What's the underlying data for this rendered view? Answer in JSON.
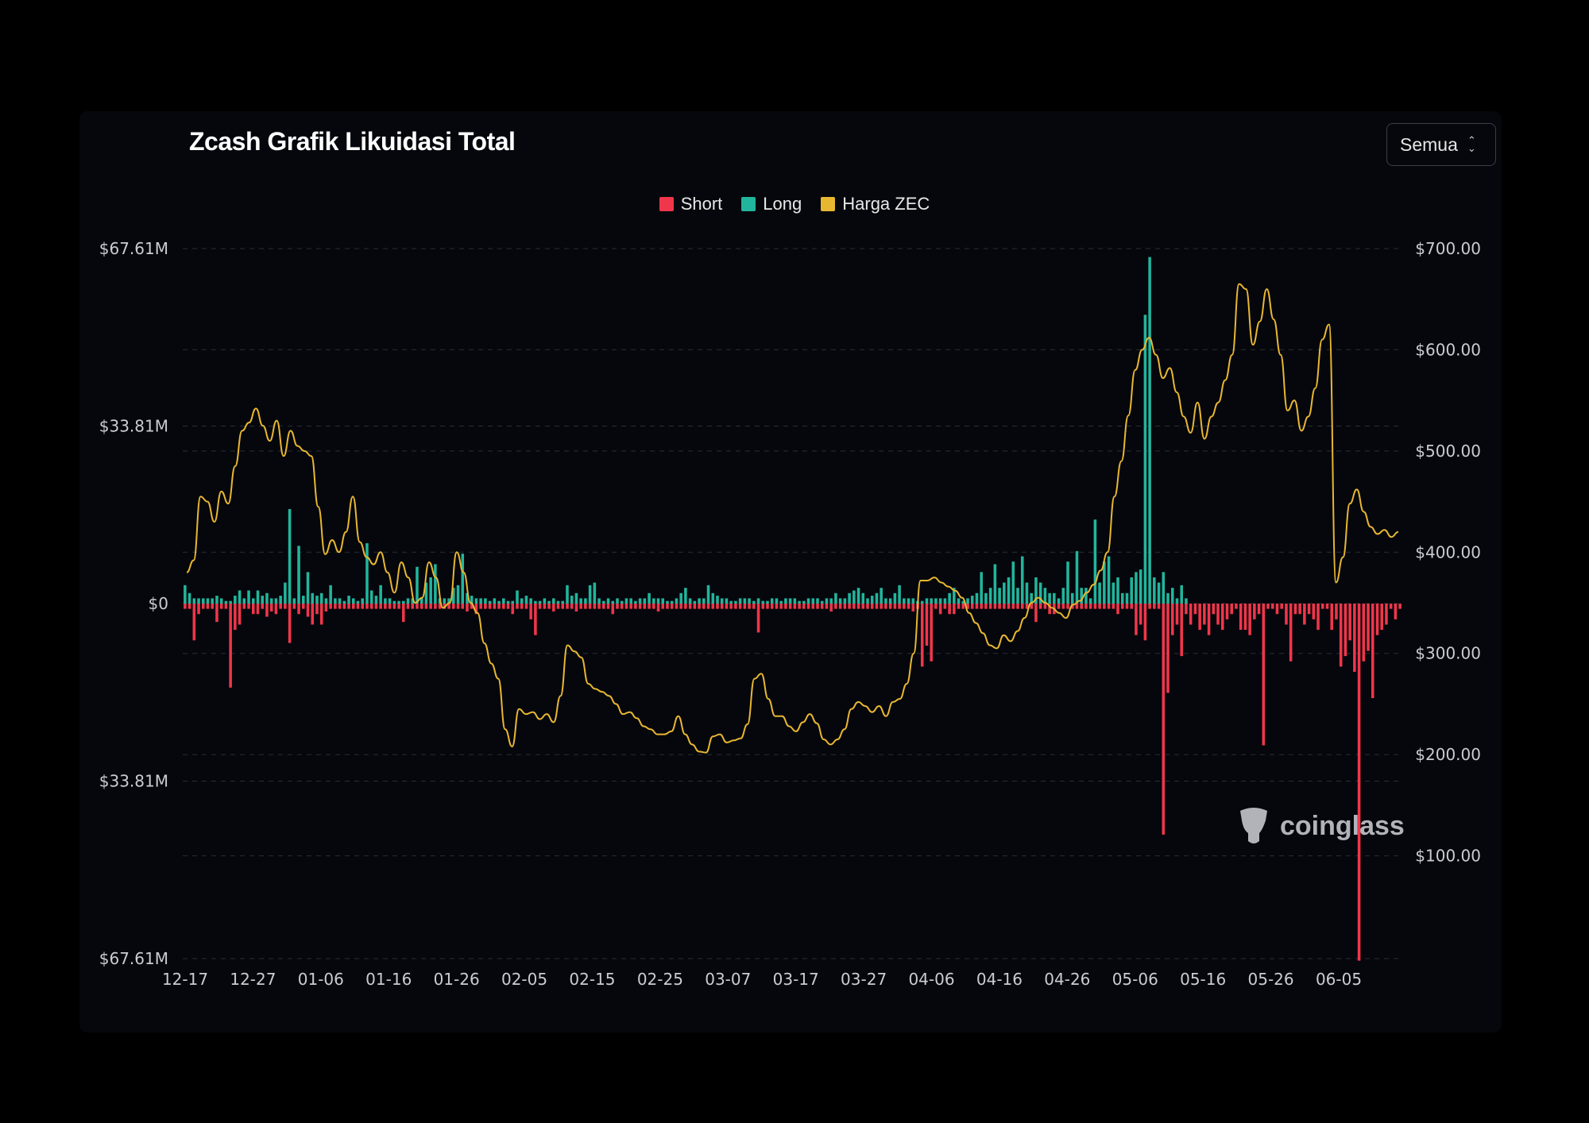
{
  "header": {
    "title": "Zcash Grafik Likuidasi Total",
    "range_select": "Semua"
  },
  "watermark": {
    "text": "coinglass",
    "icon": "coinglass-logo-icon"
  },
  "colors": {
    "short": "#f0364b",
    "long": "#22b59d",
    "price": "#e8b731",
    "background": "#05070c"
  },
  "chart_data": {
    "type": "bar",
    "title": "Zcash Grafik Likuidasi Total",
    "legend": {
      "position": "top-center",
      "entries": [
        "Short",
        "Long",
        "Harga ZEC"
      ]
    },
    "grid": true,
    "x_ticks": [
      "12-17",
      "12-27",
      "01-06",
      "01-16",
      "01-26",
      "02-05",
      "02-15",
      "02-25",
      "03-07",
      "03-17",
      "03-27",
      "04-06",
      "04-16",
      "04-26",
      "05-06",
      "05-16",
      "05-26",
      "06-05"
    ],
    "y_left": {
      "ticks": [
        "$67.61M",
        "$33.81M",
        "$0",
        "$33.81M",
        "$67.61M"
      ],
      "range": [
        -67.61,
        67.61
      ],
      "unit": "USD M"
    },
    "y_right": {
      "ticks": [
        "$700.00",
        "$600.00",
        "$500.00",
        "$400.00",
        "$300.00",
        "$200.00",
        "$100.00"
      ],
      "range": [
        0,
        700
      ],
      "unit": "USD"
    },
    "series": [
      {
        "name": "Long",
        "type": "bar",
        "values": [
          3.5,
          2,
          1,
          1,
          1,
          1,
          1,
          1.5,
          1,
          0.5,
          0.5,
          1.5,
          2.5,
          1,
          2.5,
          1,
          2.5,
          1.5,
          2,
          1,
          1,
          1.5,
          4,
          18,
          1,
          11,
          1.5,
          6,
          2,
          1.5,
          2,
          1,
          3.5,
          1,
          1,
          0.5,
          1.5,
          1,
          0.5,
          1,
          11.5,
          2.5,
          1.5,
          3.5,
          1,
          1,
          0.5,
          0.5,
          0.5,
          1,
          1,
          7,
          1,
          4,
          5,
          7.5,
          1,
          1,
          1,
          3,
          3.5,
          9.5,
          2,
          1.5,
          1,
          1,
          1,
          0.5,
          1,
          0.5,
          1,
          0.5,
          0.5,
          2.5,
          1,
          1.5,
          1,
          0.5,
          0.5,
          1,
          0.5,
          1,
          0.5,
          0.5,
          3.5,
          1.5,
          2,
          1,
          1,
          3.5,
          4,
          1,
          0.5,
          1,
          0.5,
          1,
          0.5,
          1,
          1,
          0.5,
          1,
          1,
          2,
          1,
          1,
          1,
          0.5,
          0.5,
          1,
          2,
          3,
          1,
          0.5,
          1,
          1,
          3.5,
          2,
          1.5,
          1,
          1,
          0.5,
          0.5,
          1,
          1,
          1,
          0.5,
          1,
          0.5,
          0.5,
          1,
          1,
          0.5,
          1,
          1,
          1,
          0.5,
          0.5,
          1,
          1,
          1,
          0.5,
          1,
          1,
          2,
          1,
          1,
          2,
          2.5,
          3,
          2,
          1,
          1.5,
          2,
          3,
          1,
          1,
          2,
          3.5,
          1,
          1,
          1,
          0.5,
          0.5,
          1,
          1,
          1,
          1,
          1,
          2,
          3,
          1,
          0.5,
          1,
          1.5,
          2,
          6,
          2,
          3,
          7.5,
          3,
          4,
          5,
          8,
          3,
          9,
          4,
          2,
          5,
          4,
          3,
          2,
          2,
          1,
          3,
          8,
          2,
          10,
          3,
          3,
          1,
          16,
          4,
          8,
          9,
          4,
          5,
          2,
          2,
          5,
          6,
          6.5,
          55,
          66,
          5,
          4,
          6,
          2,
          3,
          1,
          3.5,
          1
        ],
        "unit": "USD M"
      },
      {
        "name": "Short",
        "type": "bar",
        "values": [
          -1,
          -1,
          -7,
          -2,
          -1,
          -1,
          -1,
          -3.5,
          -1,
          -1,
          -16,
          -5,
          -4,
          -1,
          -1,
          -2,
          -2,
          -1,
          -2.5,
          -1.5,
          -2,
          -1,
          -1,
          -7.5,
          -1,
          -2,
          -1,
          -2.5,
          -4,
          -2,
          -4,
          -1.5,
          -1,
          -1,
          -1,
          -1,
          -1,
          -1,
          -1,
          -1,
          -1,
          -1,
          -1,
          -1,
          -1,
          -1,
          -1,
          -1,
          -3.5,
          -1,
          -1,
          -1,
          -1,
          -1,
          -1,
          -1,
          -1,
          -1,
          -1,
          -1,
          -1,
          -1,
          -1.5,
          -1,
          -2,
          -1,
          -1,
          -1,
          -1,
          -1,
          -1,
          -1,
          -2,
          -1,
          -1,
          -1,
          -3,
          -6,
          -1,
          -1,
          -1,
          -1.5,
          -1,
          -1,
          -1,
          -1,
          -1.5,
          -1,
          -1,
          -1,
          -1,
          -1,
          -1,
          -1,
          -2,
          -1,
          -1,
          -1,
          -1,
          -1,
          -1,
          -1,
          -1,
          -1,
          -1.5,
          -1,
          -1,
          -1,
          -1,
          -1,
          -1,
          -1,
          -1,
          -1,
          -1,
          -1,
          -1,
          -1,
          -1,
          -1,
          -1,
          -1,
          -1,
          -1,
          -1,
          -1,
          -5.5,
          -1,
          -1,
          -1,
          -1,
          -1,
          -1,
          -1,
          -1,
          -1,
          -1,
          -1,
          -1,
          -1,
          -1,
          -1,
          -1.5,
          -1,
          -1,
          -1,
          -1,
          -1,
          -1,
          -1,
          -1,
          -1,
          -1,
          -1,
          -1,
          -1,
          -1,
          -1,
          -1,
          -1,
          -1.5,
          -1,
          -12,
          -8,
          -11,
          -1,
          -2,
          -1,
          -2,
          -2,
          -1,
          -1,
          -1,
          -1,
          -1,
          -1,
          -1,
          -1,
          -1,
          -1,
          -1,
          -1,
          -1,
          -1,
          -1,
          -1,
          -1,
          -3.5,
          -1,
          -1,
          -2,
          -2,
          -1,
          -1,
          -1,
          -1,
          -1,
          -1,
          -1,
          -1,
          -1,
          -1,
          -1,
          -1,
          -1,
          -2,
          -1,
          -1,
          -1,
          -6,
          -4,
          -7,
          -1,
          -1,
          -1,
          -44,
          -17,
          -6,
          -4,
          -10,
          -2,
          -4,
          -2,
          -5,
          -4,
          -6,
          -2,
          -4,
          -5,
          -3,
          -2,
          -1,
          -5,
          -5,
          -6,
          -3,
          -2,
          -27,
          -1,
          -1,
          -2,
          -1,
          -4,
          -11,
          -2,
          -2,
          -4,
          -2,
          -3,
          -5,
          -1,
          -1,
          -5,
          -3,
          -12,
          -10,
          -7,
          -13,
          -68,
          -11,
          -9,
          -18,
          -6,
          -5,
          -4,
          -1,
          -3,
          -1
        ],
        "unit": "USD M"
      },
      {
        "name": "Harga ZEC",
        "type": "line",
        "values": [
          380,
          392,
          455,
          450,
          430,
          460,
          448,
          485,
          520,
          528,
          542,
          525,
          510,
          530,
          495,
          520,
          505,
          500,
          495,
          445,
          398,
          412,
          400,
          420,
          455,
          410,
          395,
          388,
          400,
          380,
          360,
          390,
          375,
          350,
          355,
          390,
          375,
          345,
          350,
          400,
          380,
          350,
          340,
          310,
          290,
          275,
          225,
          208,
          245,
          240,
          242,
          235,
          240,
          232,
          258,
          308,
          302,
          296,
          270,
          265,
          262,
          258,
          250,
          240,
          242,
          236,
          228,
          225,
          220,
          220,
          223,
          238,
          220,
          210,
          203,
          202,
          218,
          220,
          212,
          214,
          216,
          230,
          275,
          280,
          255,
          238,
          238,
          228,
          223,
          232,
          240,
          231,
          215,
          210,
          215,
          225,
          245,
          252,
          248,
          242,
          248,
          238,
          252,
          255,
          270,
          300,
          372,
          372,
          375,
          370,
          366,
          362,
          355,
          340,
          330,
          320,
          308,
          305,
          318,
          312,
          322,
          335,
          350,
          355,
          350,
          345,
          340,
          335,
          348,
          352,
          360,
          368,
          382,
          400,
          455,
          490,
          535,
          580,
          600,
          612,
          595,
          572,
          582,
          558,
          534,
          518,
          548,
          512,
          534,
          548,
          570,
          595,
          665,
          660,
          605,
          628,
          660,
          630,
          595,
          540,
          550,
          520,
          534,
          562,
          610,
          625,
          370,
          395,
          448,
          462,
          440,
          425,
          418,
          422,
          415,
          420
        ],
        "unit": "USD"
      }
    ]
  }
}
